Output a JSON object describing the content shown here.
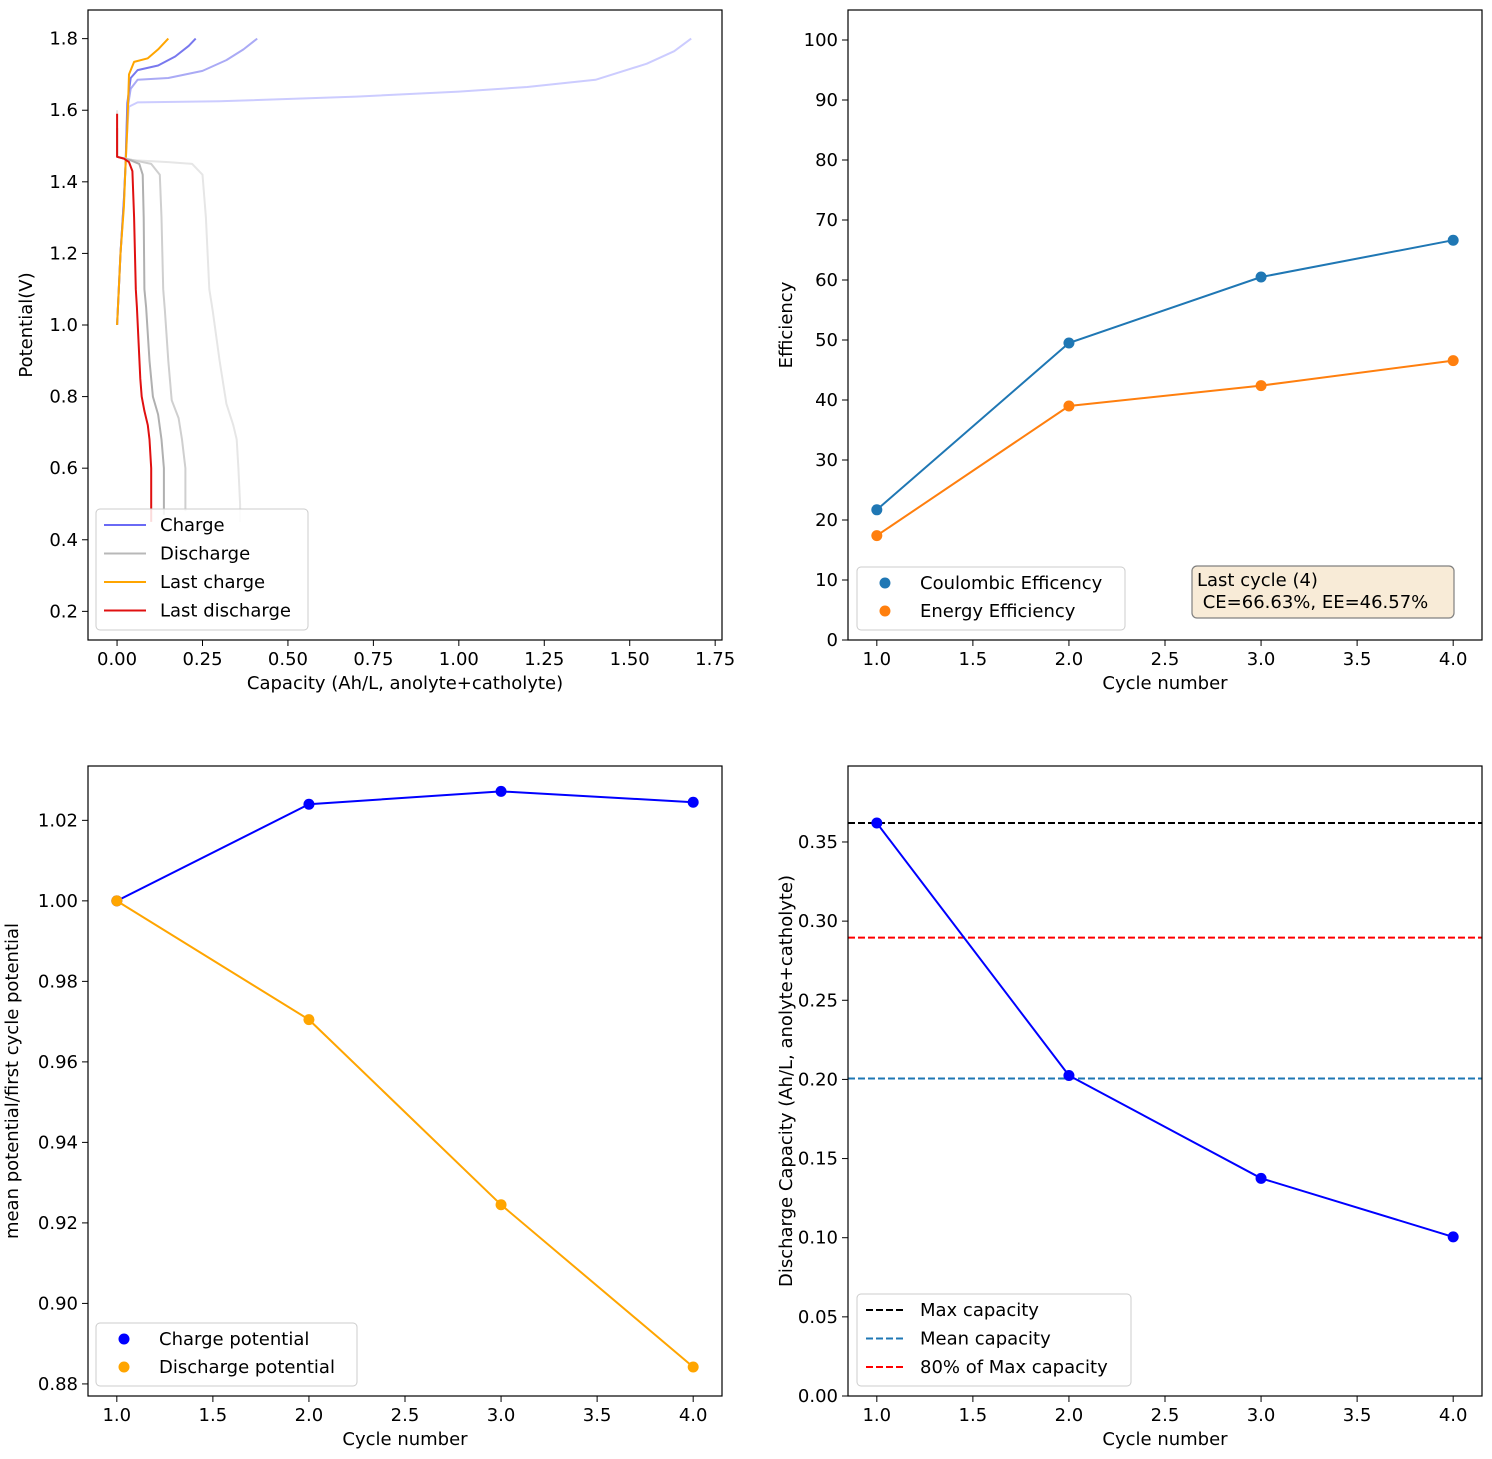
{
  "chart_data": [
    {
      "type": "line",
      "xlabel": "Capacity (Ah/L, anolyte+catholyte)",
      "ylabel": "Potential(V)",
      "xlim": [
        -0.085,
        1.77
      ],
      "ylim": [
        0.12,
        1.88
      ],
      "xticks": [
        "0.00",
        "0.25",
        "0.50",
        "0.75",
        "1.00",
        "1.25",
        "1.50",
        "1.75"
      ],
      "yticks": [
        "0.2",
        "0.4",
        "0.6",
        "0.8",
        "1.0",
        "1.2",
        "1.4",
        "1.6",
        "1.8"
      ],
      "legend_position": "lower-left",
      "legend": [
        {
          "label": "Charge",
          "color": "#6a6af5"
        },
        {
          "label": "Discharge",
          "color": "#b8b8b8"
        },
        {
          "label": "Last charge",
          "color": "#ffa500"
        },
        {
          "label": "Last discharge",
          "color": "#e01010"
        }
      ],
      "series": [
        {
          "name": "Charge",
          "kind": "charge",
          "cycle": 1,
          "color": "#ccccff",
          "points": [
            [
              0.0,
              1.0
            ],
            [
              0.01,
              1.2
            ],
            [
              0.02,
              1.35
            ],
            [
              0.025,
              1.45
            ],
            [
              0.03,
              1.55
            ],
            [
              0.035,
              1.61
            ],
            [
              0.06,
              1.622
            ],
            [
              0.3,
              1.625
            ],
            [
              0.7,
              1.638
            ],
            [
              1.0,
              1.652
            ],
            [
              1.2,
              1.665
            ],
            [
              1.4,
              1.685
            ],
            [
              1.55,
              1.73
            ],
            [
              1.63,
              1.765
            ],
            [
              1.68,
              1.8
            ]
          ]
        },
        {
          "name": "Charge",
          "kind": "charge",
          "cycle": 2,
          "color": "#aaaaf5",
          "points": [
            [
              0.0,
              1.0
            ],
            [
              0.01,
              1.2
            ],
            [
              0.02,
              1.35
            ],
            [
              0.025,
              1.45
            ],
            [
              0.03,
              1.6
            ],
            [
              0.04,
              1.66
            ],
            [
              0.06,
              1.685
            ],
            [
              0.15,
              1.69
            ],
            [
              0.25,
              1.71
            ],
            [
              0.32,
              1.74
            ],
            [
              0.37,
              1.77
            ],
            [
              0.41,
              1.8
            ]
          ]
        },
        {
          "name": "Charge",
          "kind": "charge",
          "cycle": 3,
          "color": "#7878ee",
          "points": [
            [
              0.0,
              1.0
            ],
            [
              0.01,
              1.2
            ],
            [
              0.02,
              1.35
            ],
            [
              0.025,
              1.45
            ],
            [
              0.03,
              1.62
            ],
            [
              0.04,
              1.69
            ],
            [
              0.06,
              1.712
            ],
            [
              0.12,
              1.725
            ],
            [
              0.17,
              1.75
            ],
            [
              0.21,
              1.78
            ],
            [
              0.23,
              1.8
            ]
          ]
        },
        {
          "name": "Last charge",
          "kind": "last-charge",
          "cycle": 4,
          "color": "#ffa500",
          "points": [
            [
              0.0,
              1.0
            ],
            [
              0.005,
              1.1
            ],
            [
              0.01,
              1.2
            ],
            [
              0.02,
              1.33
            ],
            [
              0.025,
              1.45
            ],
            [
              0.03,
              1.55
            ],
            [
              0.035,
              1.7
            ],
            [
              0.05,
              1.735
            ],
            [
              0.09,
              1.745
            ],
            [
              0.12,
              1.77
            ],
            [
              0.14,
              1.79
            ],
            [
              0.15,
              1.8
            ]
          ]
        },
        {
          "name": "Discharge",
          "kind": "discharge",
          "cycle": 1,
          "color": "#e6e6e6",
          "points": [
            [
              0.0,
              1.6
            ],
            [
              0.0,
              1.47
            ],
            [
              0.05,
              1.46
            ],
            [
              0.15,
              1.455
            ],
            [
              0.22,
              1.45
            ],
            [
              0.25,
              1.42
            ],
            [
              0.26,
              1.3
            ],
            [
              0.27,
              1.1
            ],
            [
              0.28,
              1.04
            ],
            [
              0.3,
              0.9
            ],
            [
              0.32,
              0.78
            ],
            [
              0.34,
              0.72
            ],
            [
              0.35,
              0.68
            ],
            [
              0.355,
              0.6
            ],
            [
              0.36,
              0.5
            ],
            [
              0.36,
              0.45
            ]
          ]
        },
        {
          "name": "Discharge",
          "kind": "discharge",
          "cycle": 2,
          "color": "#cfcfcf",
          "points": [
            [
              0.0,
              1.55
            ],
            [
              0.0,
              1.47
            ],
            [
              0.05,
              1.46
            ],
            [
              0.1,
              1.45
            ],
            [
              0.125,
              1.42
            ],
            [
              0.13,
              1.3
            ],
            [
              0.135,
              1.1
            ],
            [
              0.14,
              1.04
            ],
            [
              0.15,
              0.9
            ],
            [
              0.16,
              0.79
            ],
            [
              0.18,
              0.74
            ],
            [
              0.19,
              0.68
            ],
            [
              0.2,
              0.6
            ],
            [
              0.2,
              0.48
            ]
          ]
        },
        {
          "name": "Discharge",
          "kind": "discharge",
          "cycle": 3,
          "color": "#b0b0b0",
          "points": [
            [
              0.0,
              1.55
            ],
            [
              0.0,
              1.47
            ],
            [
              0.04,
              1.46
            ],
            [
              0.065,
              1.45
            ],
            [
              0.075,
              1.42
            ],
            [
              0.078,
              1.3
            ],
            [
              0.08,
              1.1
            ],
            [
              0.085,
              1.05
            ],
            [
              0.095,
              0.9
            ],
            [
              0.105,
              0.8
            ],
            [
              0.12,
              0.75
            ],
            [
              0.13,
              0.68
            ],
            [
              0.137,
              0.6
            ],
            [
              0.137,
              0.47
            ]
          ]
        },
        {
          "name": "Last discharge",
          "kind": "last-discharge",
          "cycle": 4,
          "color": "#e01010",
          "points": [
            [
              0.0,
              1.59
            ],
            [
              0.0,
              1.47
            ],
            [
              0.02,
              1.465
            ],
            [
              0.035,
              1.455
            ],
            [
              0.045,
              1.43
            ],
            [
              0.05,
              1.3
            ],
            [
              0.055,
              1.1
            ],
            [
              0.058,
              1.05
            ],
            [
              0.063,
              0.95
            ],
            [
              0.068,
              0.85
            ],
            [
              0.072,
              0.8
            ],
            [
              0.08,
              0.76
            ],
            [
              0.09,
              0.72
            ],
            [
              0.095,
              0.68
            ],
            [
              0.1,
              0.6
            ],
            [
              0.1,
              0.5
            ],
            [
              0.1,
              0.45
            ]
          ]
        }
      ]
    },
    {
      "type": "line",
      "xlabel": "Cycle number",
      "ylabel": "Efficiency",
      "xlim": [
        0.85,
        4.15
      ],
      "ylim": [
        0,
        105
      ],
      "xticks": [
        "1.0",
        "1.5",
        "2.0",
        "2.5",
        "3.0",
        "3.5",
        "4.0"
      ],
      "yticks": [
        "0",
        "10",
        "20",
        "30",
        "40",
        "50",
        "60",
        "70",
        "80",
        "90",
        "100"
      ],
      "legend_position": "lower-left",
      "x": [
        1,
        2,
        3,
        4
      ],
      "series": [
        {
          "name": "Coulombic Efficency",
          "color": "#1f77b4",
          "values": [
            21.7,
            49.5,
            60.5,
            66.63
          ]
        },
        {
          "name": "Energy Efficiency",
          "color": "#ff7f0e",
          "values": [
            17.4,
            39.0,
            42.4,
            46.57
          ]
        }
      ],
      "annotation": {
        "line1": "Last cycle (4)",
        "line2": " CE=66.63%, EE=46.57%",
        "position": "lower-right",
        "facecolor": "#f8ebd7",
        "edgecolor": "#808080"
      }
    },
    {
      "type": "line",
      "xlabel": "Cycle number",
      "ylabel": "mean potential/first cycle potential",
      "xlim": [
        0.85,
        4.15
      ],
      "ylim": [
        0.877,
        1.0335
      ],
      "xticks": [
        "1.0",
        "1.5",
        "2.0",
        "2.5",
        "3.0",
        "3.5",
        "4.0"
      ],
      "yticks": [
        "0.88",
        "0.90",
        "0.92",
        "0.94",
        "0.96",
        "0.98",
        "1.00",
        "1.02"
      ],
      "legend_position": "lower-left",
      "x": [
        1,
        2,
        3,
        4
      ],
      "series": [
        {
          "name": "Charge potential",
          "color": "#0000ff",
          "values": [
            1.0,
            1.024,
            1.0272,
            1.0245
          ]
        },
        {
          "name": "Discharge potential",
          "color": "#ffa500",
          "values": [
            1.0,
            0.9705,
            0.9245,
            0.8842
          ]
        }
      ]
    },
    {
      "type": "line",
      "xlabel": "Cycle number",
      "ylabel": "Discharge Capacity (Ah/L, anolyte+catholyte)",
      "xlim": [
        0.85,
        4.15
      ],
      "ylim": [
        0,
        0.398
      ],
      "xticks": [
        "1.0",
        "1.5",
        "2.0",
        "2.5",
        "3.0",
        "3.5",
        "4.0"
      ],
      "yticks": [
        "0.00",
        "0.05",
        "0.10",
        "0.15",
        "0.20",
        "0.25",
        "0.30",
        "0.35"
      ],
      "legend_position": "lower-left",
      "x": [
        1,
        2,
        3,
        4
      ],
      "series": [
        {
          "name": "",
          "color": "#0000ff",
          "values": [
            0.362,
            0.2025,
            0.1375,
            0.1005
          ]
        }
      ],
      "hlines": [
        {
          "name": "Max capacity",
          "color": "#000000",
          "value": 0.362
        },
        {
          "name": "Mean capacity",
          "color": "#1f77b4",
          "value": 0.2006
        },
        {
          "name": "80% of Max capacity",
          "color": "#ff0000",
          "value": 0.2896
        }
      ]
    }
  ]
}
